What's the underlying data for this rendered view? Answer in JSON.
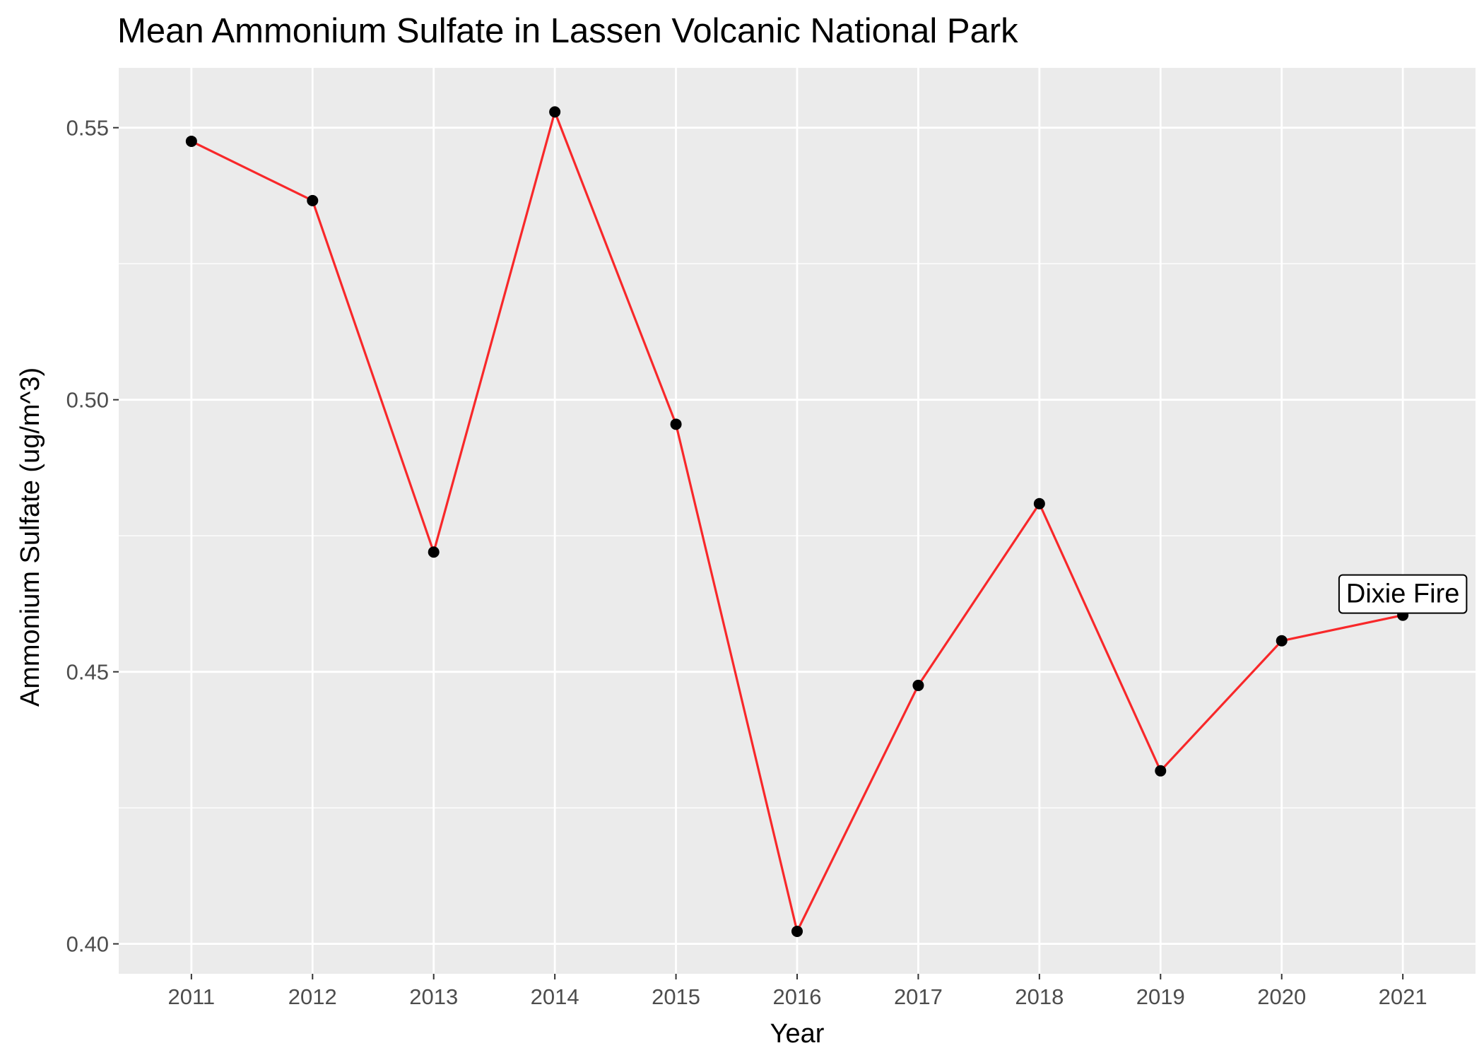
{
  "chart_data": {
    "type": "line",
    "title": "Mean Ammonium Sulfate in Lassen Volcanic National Park",
    "xlabel": "Year",
    "ylabel": "Ammonium Sulfate (ug/m^3)",
    "categories": [
      "2011",
      "2012",
      "2013",
      "2014",
      "2015",
      "2016",
      "2017",
      "2018",
      "2019",
      "2020",
      "2021"
    ],
    "series": [
      {
        "values": [
          0.5475,
          0.5366,
          0.472,
          0.5529,
          0.4955,
          0.4023,
          0.4475,
          0.4809,
          0.4318,
          0.4557,
          0.4604
        ]
      }
    ],
    "ylim": [
      0.3945,
      0.561
    ],
    "yticks": [
      0.4,
      0.45,
      0.5,
      0.55
    ],
    "ytick_labels": [
      "0.40",
      "0.45",
      "0.50",
      "0.55"
    ],
    "grid": true,
    "legend": "none",
    "annotations": [
      {
        "text": "Dixie Fire",
        "x": "2021",
        "y": 0.4604
      }
    ],
    "colors": {
      "line": "#f8282a",
      "point": "#000000",
      "panel_background": "#ebebeb",
      "grid": "#ffffff",
      "tick_label": "#4d4d4d"
    }
  }
}
